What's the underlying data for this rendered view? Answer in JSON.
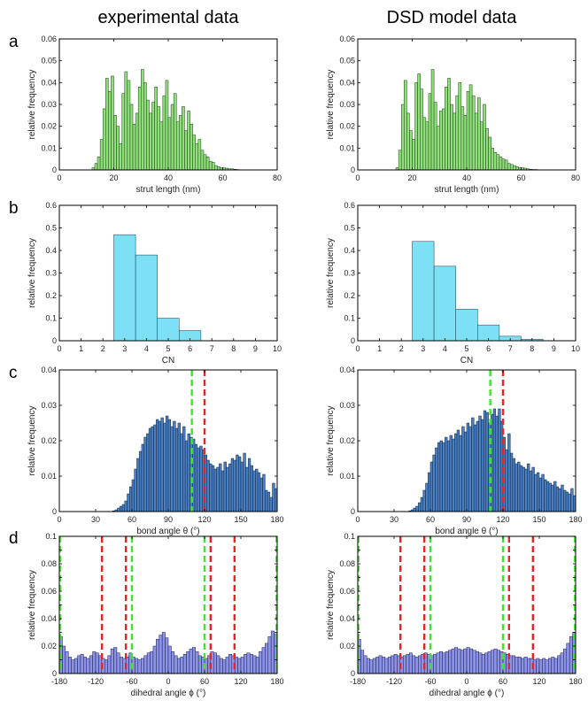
{
  "column_titles": [
    "experimental data",
    "DSD model data"
  ],
  "row_letters": [
    "a",
    "b",
    "c",
    "d"
  ],
  "chart_data": [
    {
      "id": "a-exp",
      "type": "bar",
      "row": "a",
      "title": "experimental data",
      "xlabel": "strut length (nm)",
      "ylabel": "relative frequency",
      "xlim": [
        0,
        80
      ],
      "ylim": [
        0,
        0.06
      ],
      "xticks": [
        0,
        20,
        40,
        60,
        80
      ],
      "yticks": [
        0,
        0.01,
        0.02,
        0.03,
        0.04,
        0.05,
        0.06
      ],
      "ytick_labels": [
        "0",
        "0.01",
        "0.02",
        "0.03",
        "0.04",
        "0.05",
        "0.06"
      ],
      "bin_start": 12,
      "bin_width": 1,
      "values": [
        0.001,
        0.003,
        0.006,
        0.014,
        0.028,
        0.042,
        0.036,
        0.043,
        0.025,
        0.02,
        0.012,
        0.035,
        0.045,
        0.041,
        0.03,
        0.021,
        0.026,
        0.038,
        0.046,
        0.04,
        0.032,
        0.026,
        0.031,
        0.038,
        0.029,
        0.022,
        0.034,
        0.041,
        0.024,
        0.03,
        0.035,
        0.022,
        0.025,
        0.029,
        0.018,
        0.027,
        0.021,
        0.016,
        0.012,
        0.014,
        0.009,
        0.007,
        0.006,
        0.004,
        0.0035,
        0.002,
        0.0015,
        0.001,
        0.001,
        0.0008,
        0.0005,
        0.0005,
        0.0003,
        0.0002
      ],
      "bar_color": "#8fe07a",
      "edge_color": "#1f3d1a"
    },
    {
      "id": "a-dsd",
      "type": "bar",
      "row": "a",
      "title": "DSD model data",
      "xlabel": "strut length (nm)",
      "ylabel": "relative frequency",
      "xlim": [
        0,
        80
      ],
      "ylim": [
        0,
        0.06
      ],
      "xticks": [
        0,
        20,
        40,
        60,
        80
      ],
      "yticks": [
        0,
        0.01,
        0.02,
        0.03,
        0.04,
        0.05,
        0.06
      ],
      "ytick_labels": [
        "0",
        "0.01",
        "0.02",
        "0.03",
        "0.04",
        "0.05",
        "0.06"
      ],
      "bin_start": 14,
      "bin_width": 1,
      "values": [
        0.001,
        0.009,
        0.03,
        0.041,
        0.026,
        0.018,
        0.014,
        0.04,
        0.044,
        0.037,
        0.024,
        0.022,
        0.035,
        0.046,
        0.031,
        0.02,
        0.027,
        0.028,
        0.038,
        0.042,
        0.03,
        0.026,
        0.034,
        0.04,
        0.029,
        0.025,
        0.036,
        0.039,
        0.034,
        0.026,
        0.033,
        0.022,
        0.03,
        0.019,
        0.015,
        0.01,
        0.008,
        0.007,
        0.006,
        0.005,
        0.0045,
        0.003,
        0.0025,
        0.002,
        0.0015,
        0.001,
        0.001,
        0.0008,
        0.0005,
        0.0003,
        0.0002,
        0.0002
      ],
      "bar_color": "#8fe07a",
      "edge_color": "#1f3d1a"
    },
    {
      "id": "b-exp",
      "type": "bar",
      "row": "b",
      "title": "experimental data",
      "xlabel": "CN",
      "ylabel": "relative frequency",
      "xlim": [
        0,
        10
      ],
      "ylim": [
        0,
        0.6
      ],
      "xticks": [
        0,
        1,
        2,
        3,
        4,
        5,
        6,
        7,
        8,
        9,
        10
      ],
      "yticks": [
        0,
        0.1,
        0.2,
        0.3,
        0.4,
        0.5,
        0.6
      ],
      "ytick_labels": [
        "0",
        "0.1",
        "0.2",
        "0.3",
        "0.4",
        "0.5",
        "0.6"
      ],
      "bin_start": 2.5,
      "bin_width": 1,
      "values": [
        0.47,
        0.38,
        0.1,
        0.045
      ],
      "bar_color": "#7de0f5",
      "edge_color": "#1a3a44"
    },
    {
      "id": "b-dsd",
      "type": "bar",
      "row": "b",
      "title": "DSD model data",
      "xlabel": "CN",
      "ylabel": "relative frequency",
      "xlim": [
        0,
        10
      ],
      "ylim": [
        0,
        0.6
      ],
      "xticks": [
        0,
        1,
        2,
        3,
        4,
        5,
        6,
        7,
        8,
        9,
        10
      ],
      "yticks": [
        0,
        0.1,
        0.2,
        0.3,
        0.4,
        0.5,
        0.6
      ],
      "ytick_labels": [
        "0",
        "0.1",
        "0.2",
        "0.3",
        "0.4",
        "0.5",
        "0.6"
      ],
      "bin_start": 2.5,
      "bin_width": 1,
      "values": [
        0.44,
        0.33,
        0.14,
        0.07,
        0.02,
        0.007
      ],
      "bar_color": "#7de0f5",
      "edge_color": "#1a3a44"
    },
    {
      "id": "c-exp",
      "type": "bar",
      "row": "c",
      "title": "experimental data",
      "xlabel": "bond angle θ (°)",
      "ylabel": "relative frequency",
      "xlim": [
        0,
        180
      ],
      "ylim": [
        0,
        0.04
      ],
      "xticks": [
        0,
        30,
        60,
        90,
        120,
        150,
        180
      ],
      "yticks": [
        0,
        0.01,
        0.02,
        0.03,
        0.04
      ],
      "ytick_labels": [
        "0",
        "0.01",
        "0.02",
        "0.03",
        "0.04"
      ],
      "bin_start": 0,
      "bin_width": 2,
      "values": [
        0,
        0,
        0,
        0,
        0,
        0,
        0,
        0,
        0,
        0,
        0,
        0,
        0,
        0,
        0,
        0,
        0,
        0,
        0,
        0,
        0,
        0,
        0.0002,
        0.0005,
        0.001,
        0.0015,
        0.002,
        0.003,
        0.005,
        0.007,
        0.009,
        0.012,
        0.015,
        0.017,
        0.019,
        0.021,
        0.022,
        0.0235,
        0.024,
        0.0245,
        0.026,
        0.0255,
        0.0265,
        0.025,
        0.027,
        0.026,
        0.024,
        0.0255,
        0.0235,
        0.025,
        0.022,
        0.024,
        0.02,
        0.022,
        0.021,
        0.0205,
        0.019,
        0.018,
        0.0185,
        0.0175,
        0.016,
        0.0145,
        0.0135,
        0.013,
        0.012,
        0.0125,
        0.0135,
        0.0115,
        0.014,
        0.0125,
        0.0135,
        0.015,
        0.0145,
        0.016,
        0.0155,
        0.014,
        0.0165,
        0.0125,
        0.015,
        0.013,
        0.0115,
        0.012,
        0.011,
        0.0095,
        0.0105,
        0.006,
        0.0055,
        0.004,
        0.008,
        0.0065
      ],
      "reference_lines": [
        {
          "x": 109.5,
          "color": "#3ee52a"
        },
        {
          "x": 120,
          "color": "#ef2020"
        }
      ],
      "bar_color": "#4a7fc1",
      "edge_color": "#0e2040"
    },
    {
      "id": "c-dsd",
      "type": "bar",
      "row": "c",
      "title": "DSD model data",
      "xlabel": "bond angle θ (°)",
      "ylabel": "relative frequency",
      "xlim": [
        0,
        180
      ],
      "ylim": [
        0,
        0.04
      ],
      "xticks": [
        0,
        30,
        60,
        90,
        120,
        150,
        180
      ],
      "yticks": [
        0,
        0.01,
        0.02,
        0.03,
        0.04
      ],
      "ytick_labels": [
        "0",
        "0.01",
        "0.02",
        "0.03",
        "0.04"
      ],
      "bin_start": 0,
      "bin_width": 2,
      "values": [
        0,
        0,
        0,
        0,
        0,
        0,
        0,
        0,
        0,
        0,
        0,
        0,
        0,
        0,
        0,
        0,
        0,
        0,
        0,
        0,
        0,
        0.0002,
        0.0005,
        0.001,
        0.0015,
        0.0025,
        0.004,
        0.006,
        0.008,
        0.011,
        0.014,
        0.016,
        0.018,
        0.0195,
        0.02,
        0.0195,
        0.021,
        0.02,
        0.0215,
        0.0205,
        0.022,
        0.023,
        0.0215,
        0.024,
        0.0225,
        0.025,
        0.024,
        0.0265,
        0.0245,
        0.0255,
        0.027,
        0.026,
        0.0285,
        0.028,
        0.025,
        0.0275,
        0.029,
        0.027,
        0.029,
        0.0255,
        0.021,
        0.0175,
        0.022,
        0.0165,
        0.015,
        0.0135,
        0.014,
        0.013,
        0.0125,
        0.012,
        0.0135,
        0.0115,
        0.0125,
        0.0105,
        0.011,
        0.0095,
        0.0105,
        0.009,
        0.0085,
        0.008,
        0.0075,
        0.0085,
        0.007,
        0.0065,
        0.0075,
        0.006,
        0.0055,
        0.005,
        0.0065,
        0.0045
      ],
      "reference_lines": [
        {
          "x": 109.5,
          "color": "#3ee52a"
        },
        {
          "x": 120,
          "color": "#ef2020"
        }
      ],
      "bar_color": "#4a7fc1",
      "edge_color": "#0e2040"
    },
    {
      "id": "d-exp",
      "type": "bar",
      "row": "d",
      "title": "experimental data",
      "xlabel": "dihedral angle ϕ (°)",
      "ylabel": "relative frequency",
      "xlim": [
        -180,
        180
      ],
      "ylim": [
        0,
        0.1
      ],
      "xticks": [
        -180,
        -120,
        -60,
        0,
        60,
        120,
        180
      ],
      "yticks": [
        0,
        0.01,
        0.02,
        0.03,
        0.04,
        0.05,
        0.06,
        0.07,
        0.08,
        0.09,
        0.1
      ],
      "ytick_labels": [
        "0",
        "",
        "0.02",
        "",
        "0.04",
        "",
        "0.06",
        "",
        "0.08",
        "",
        "0.1"
      ],
      "bin_start": -180,
      "bin_width": 5,
      "values": [
        0.027,
        0.02,
        0.016,
        0.012,
        0.01,
        0.011,
        0.013,
        0.014,
        0.012,
        0.011,
        0.013,
        0.016,
        0.015,
        0.013,
        0.011,
        0.01,
        0.013,
        0.018,
        0.019,
        0.015,
        0.012,
        0.011,
        0.012,
        0.015,
        0.012,
        0.011,
        0.01,
        0.011,
        0.013,
        0.015,
        0.016,
        0.02,
        0.025,
        0.028,
        0.03,
        0.026,
        0.02,
        0.016,
        0.013,
        0.011,
        0.012,
        0.014,
        0.016,
        0.018,
        0.019,
        0.016,
        0.013,
        0.012,
        0.011,
        0.013,
        0.016,
        0.015,
        0.013,
        0.011,
        0.01,
        0.012,
        0.014,
        0.013,
        0.012,
        0.011,
        0.012,
        0.014,
        0.015,
        0.014,
        0.013,
        0.012,
        0.016,
        0.019,
        0.022,
        0.027,
        0.031,
        0.029
      ],
      "reference_lines": [
        {
          "x": -179,
          "color": "#3ee52a"
        },
        {
          "x": -109.5,
          "color": "#ef2020"
        },
        {
          "x": -70,
          "color": "#ef2020"
        },
        {
          "x": -60,
          "color": "#3ee52a"
        },
        {
          "x": 60,
          "color": "#3ee52a"
        },
        {
          "x": 70,
          "color": "#ef2020"
        },
        {
          "x": 109.5,
          "color": "#ef2020"
        },
        {
          "x": 179,
          "color": "#3ee52a"
        }
      ],
      "bar_color": "#8c92e8",
      "edge_color": "#1a1d44"
    },
    {
      "id": "d-dsd",
      "type": "bar",
      "row": "d",
      "title": "DSD model data",
      "xlabel": "dihedral angle ϕ (°)",
      "ylabel": "relative frequency",
      "xlim": [
        -180,
        180
      ],
      "ylim": [
        0,
        0.1
      ],
      "xticks": [
        -180,
        -120,
        -60,
        0,
        60,
        120,
        180
      ],
      "yticks": [
        0,
        0.01,
        0.02,
        0.03,
        0.04,
        0.05,
        0.06,
        0.07,
        0.08,
        0.09,
        0.1
      ],
      "ytick_labels": [
        "0",
        "",
        "0.02",
        "",
        "0.04",
        "",
        "0.06",
        "",
        "0.08",
        "",
        "0.1"
      ],
      "bin_start": -180,
      "bin_width": 5,
      "values": [
        0.025,
        0.017,
        0.013,
        0.011,
        0.01,
        0.011,
        0.012,
        0.013,
        0.012,
        0.011,
        0.012,
        0.013,
        0.014,
        0.013,
        0.012,
        0.013,
        0.014,
        0.015,
        0.013,
        0.012,
        0.013,
        0.014,
        0.015,
        0.014,
        0.013,
        0.014,
        0.015,
        0.016,
        0.015,
        0.016,
        0.017,
        0.018,
        0.019,
        0.018,
        0.017,
        0.018,
        0.019,
        0.018,
        0.017,
        0.016,
        0.015,
        0.014,
        0.015,
        0.016,
        0.017,
        0.018,
        0.017,
        0.016,
        0.015,
        0.014,
        0.013,
        0.013,
        0.012,
        0.012,
        0.011,
        0.012,
        0.011,
        0.011,
        0.01,
        0.011,
        0.01,
        0.011,
        0.01,
        0.011,
        0.012,
        0.011,
        0.013,
        0.015,
        0.018,
        0.022,
        0.027,
        0.03
      ],
      "reference_lines": [
        {
          "x": -179,
          "color": "#3ee52a"
        },
        {
          "x": -109.5,
          "color": "#ef2020"
        },
        {
          "x": -70,
          "color": "#ef2020"
        },
        {
          "x": -60,
          "color": "#3ee52a"
        },
        {
          "x": 60,
          "color": "#3ee52a"
        },
        {
          "x": 70,
          "color": "#ef2020"
        },
        {
          "x": 109.5,
          "color": "#ef2020"
        },
        {
          "x": 179,
          "color": "#3ee52a"
        }
      ],
      "bar_color": "#8c92e8",
      "edge_color": "#1a1d44"
    }
  ]
}
